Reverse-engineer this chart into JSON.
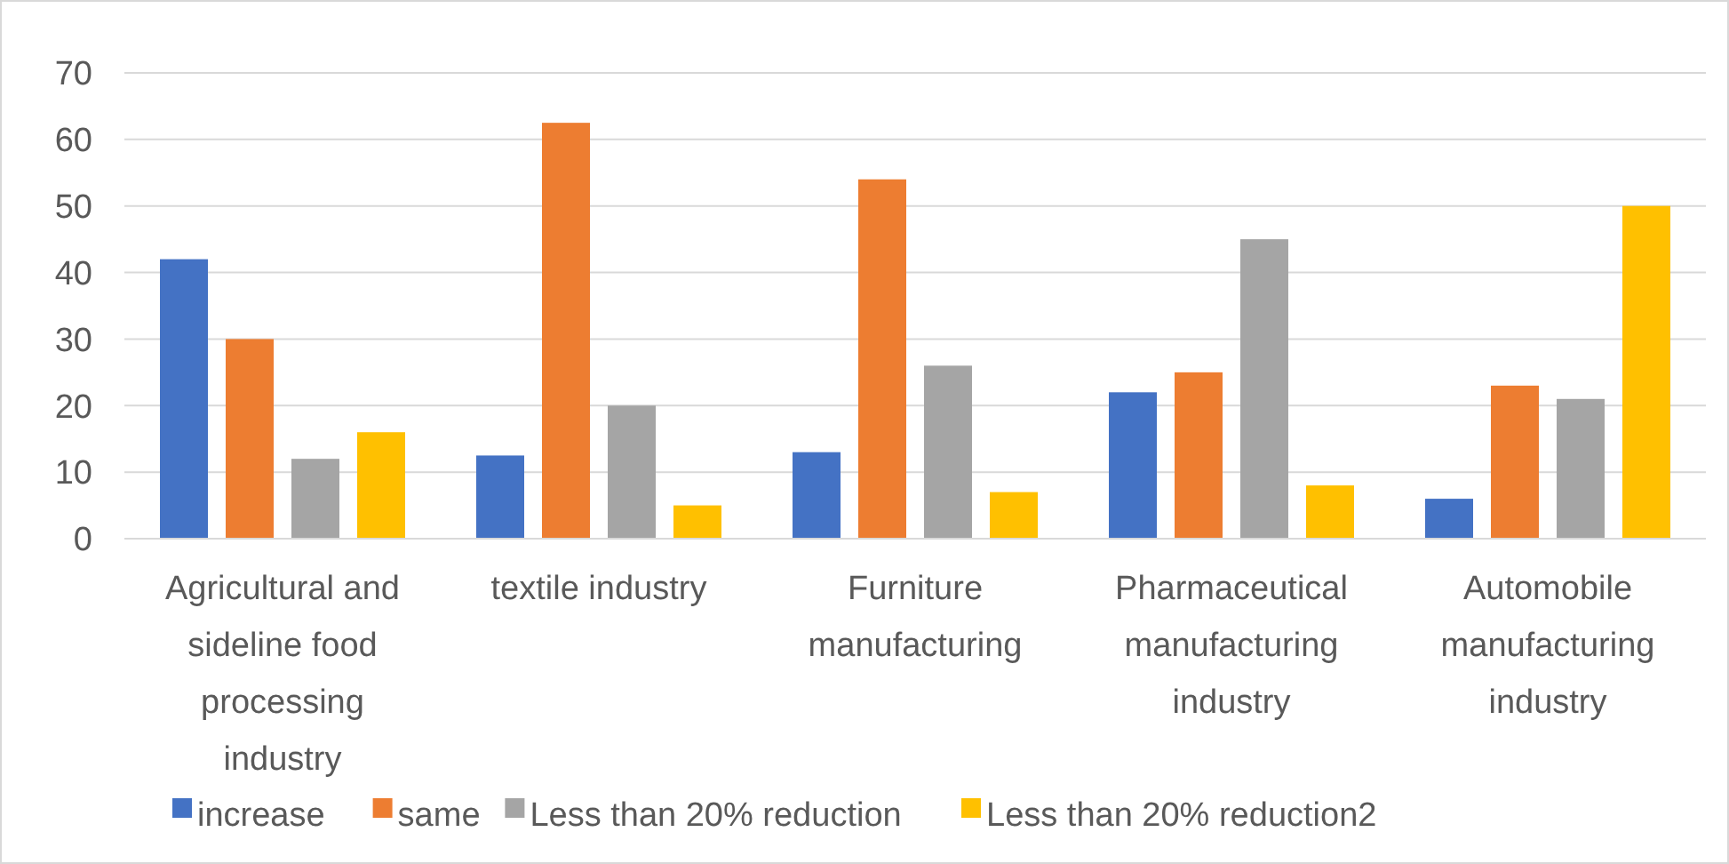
{
  "chart_data": {
    "type": "bar",
    "categories": [
      "Agricultural and sideline food processing industry",
      "textile industry",
      "Furniture manufacturing",
      "Pharmaceutical manufacturing industry",
      "Automobile manufacturing industry"
    ],
    "series": [
      {
        "name": "increase",
        "color": "#4472c4",
        "values": [
          42,
          12.5,
          13,
          22,
          6
        ]
      },
      {
        "name": "same",
        "color": "#ed7d31",
        "values": [
          30,
          62.5,
          54,
          25,
          23
        ]
      },
      {
        "name": "Less than 20% reduction",
        "color": "#a5a5a5",
        "values": [
          12,
          20,
          26,
          45,
          21
        ]
      },
      {
        "name": "Less than 20% reduction2",
        "color": "#ffc000",
        "values": [
          16,
          5,
          7,
          8,
          50
        ]
      }
    ],
    "ylim": [
      0,
      70
    ],
    "yticks": [
      0,
      10,
      20,
      30,
      40,
      50,
      60,
      70
    ],
    "grid": "y",
    "legend": "bottom"
  }
}
